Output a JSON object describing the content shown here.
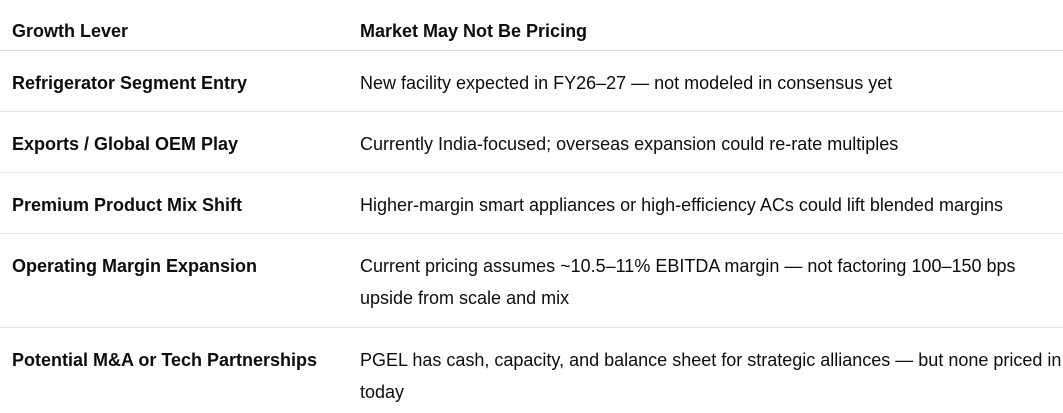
{
  "table": {
    "headers": {
      "growth_lever": "Growth Lever",
      "market_pricing": "Market May Not Be Pricing"
    },
    "rows": [
      {
        "lever": "Refrigerator Segment Entry",
        "pricing": "New facility expected in FY26–27 — not modeled in consensus yet"
      },
      {
        "lever": "Exports / Global OEM Play",
        "pricing": "Currently India-focused; overseas expansion could re-rate multiples"
      },
      {
        "lever": "Premium Product Mix Shift",
        "pricing": "Higher-margin smart appliances or high-efficiency ACs could lift blended margins"
      },
      {
        "lever": "Operating Margin Expansion",
        "pricing": "Current pricing assumes ~10.5–11% EBITDA margin — not factoring 100–150 bps upside from scale and mix"
      },
      {
        "lever": "Potential M&A or Tech Partnerships",
        "pricing": "PGEL has cash, capacity, and balance sheet for strategic alliances — but none priced in today"
      }
    ]
  }
}
